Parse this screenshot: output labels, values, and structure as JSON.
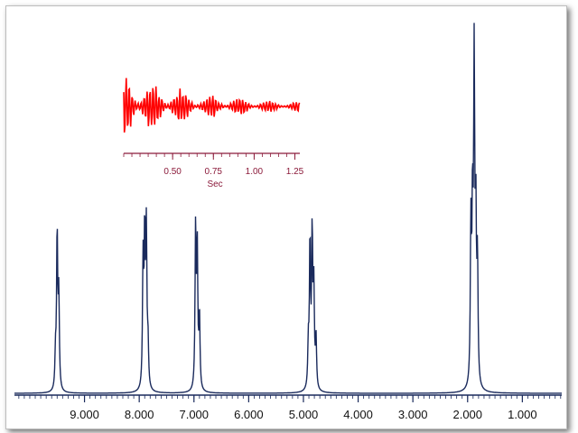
{
  "chart_data": [
    {
      "type": "line",
      "title": "",
      "xlabel": "",
      "ylabel": "",
      "x_axis_reversed": true,
      "xlim": [
        10.2,
        0.0
      ],
      "x_ticks": [
        "9.000",
        "8.000",
        "7.000",
        "6.000",
        "5.000",
        "4.000",
        "3.000",
        "2.000",
        "1.000"
      ],
      "series": [
        {
          "description_peaks": "spectrum peaks: chemical shift (ppm) and relative intensity",
          "peaks": [
            {
              "shift": 9.53,
              "height": 0.2
            },
            {
              "shift": 9.5,
              "height": 0.95
            },
            {
              "shift": 9.47,
              "height": 0.55
            },
            {
              "shift": 7.93,
              "height": 0.75
            },
            {
              "shift": 7.9,
              "height": 0.9
            },
            {
              "shift": 7.87,
              "height": 0.92
            },
            {
              "shift": 7.84,
              "height": 0.25
            },
            {
              "shift": 6.97,
              "height": 0.95
            },
            {
              "shift": 6.94,
              "height": 0.82
            },
            {
              "shift": 6.9,
              "height": 0.44
            },
            {
              "shift": 4.91,
              "height": 0.25
            },
            {
              "shift": 4.88,
              "height": 0.88
            },
            {
              "shift": 4.84,
              "height": 0.92
            },
            {
              "shift": 4.81,
              "height": 0.58
            },
            {
              "shift": 4.77,
              "height": 0.3
            },
            {
              "shift": 1.94,
              "height": 0.93
            },
            {
              "shift": 1.91,
              "height": 1.0
            },
            {
              "shift": 1.88,
              "height": 1.88
            },
            {
              "shift": 1.85,
              "height": 0.95
            },
            {
              "shift": 1.82,
              "height": 0.72
            }
          ],
          "color": "#1a2a5c"
        }
      ],
      "grid": false
    },
    {
      "type": "line",
      "title": "",
      "xlabel": "Sec",
      "ylabel": "",
      "xlim": [
        0.2,
        1.28
      ],
      "x_ticks": [
        "0.50",
        "0.75",
        "1.00",
        "1.25"
      ],
      "series": [
        {
          "envelope": "decaying oscillation (free induction decay)",
          "color": "#ff0000"
        }
      ]
    }
  ],
  "colors": {
    "spectrum": "#1a2a5c",
    "fid": "#ff0000",
    "fid_axis": "#8b1a3a"
  }
}
